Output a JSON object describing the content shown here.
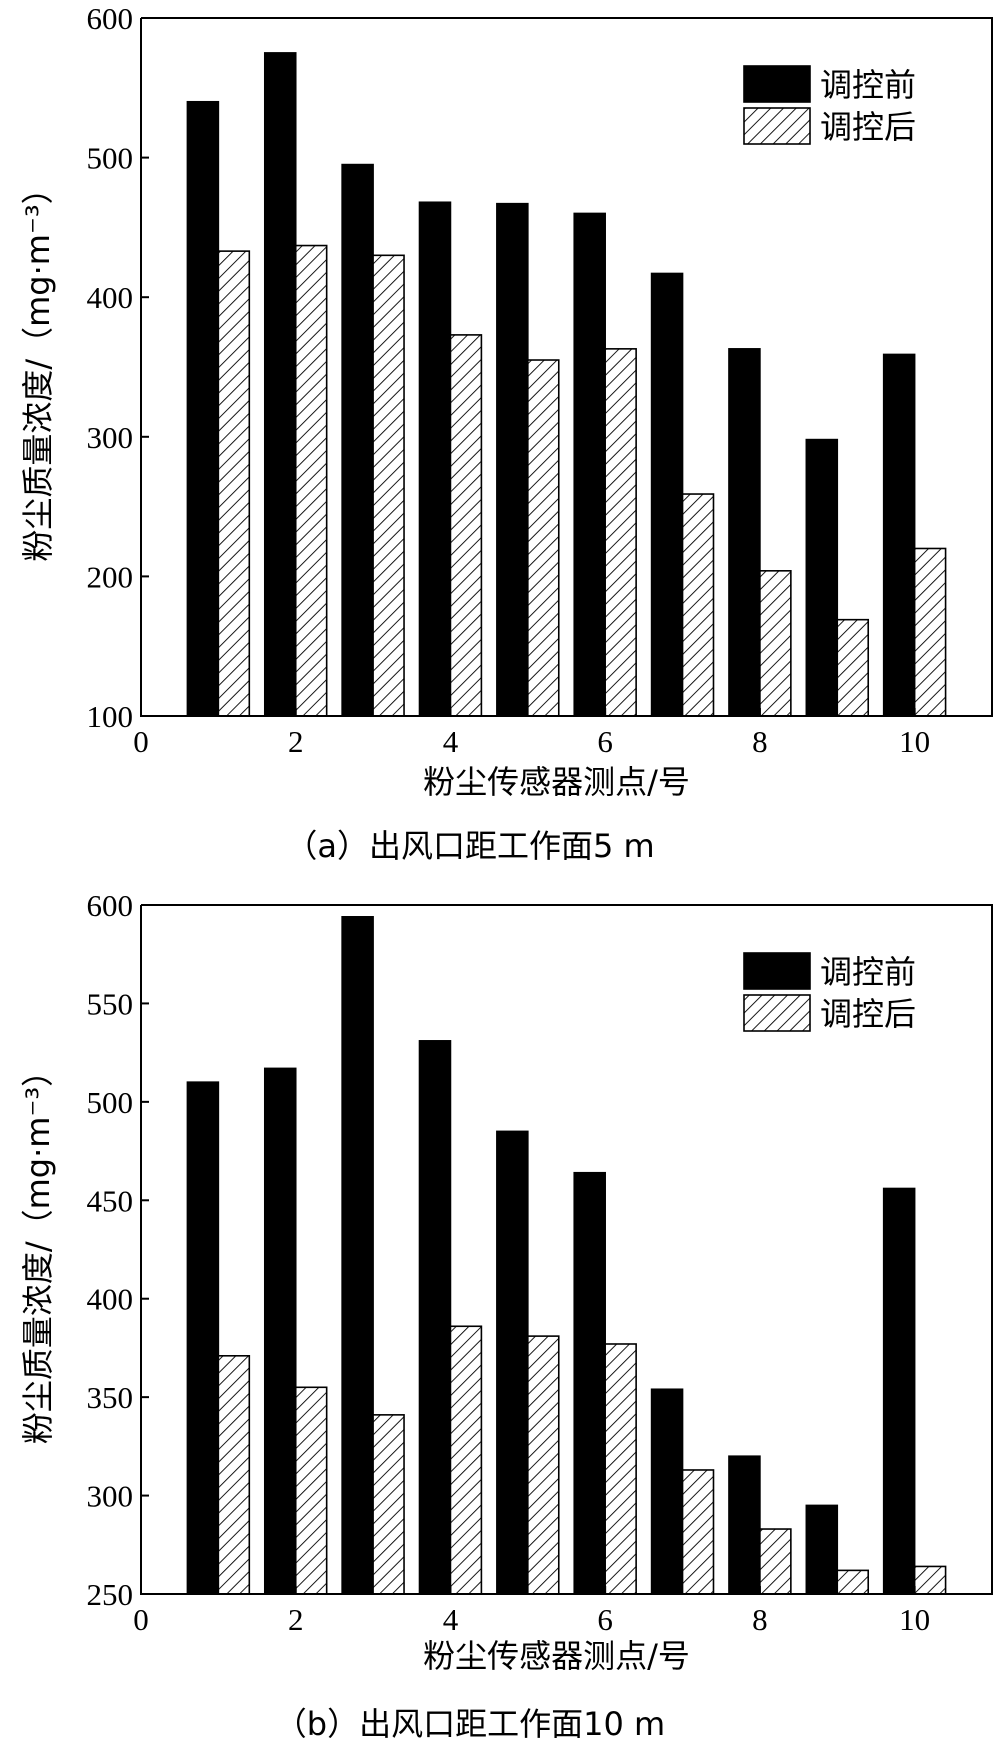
{
  "chart_data": [
    {
      "type": "bar",
      "panel": "a",
      "caption": "（a）出风口距工作面5 m",
      "xlabel": "粉尘传感器测点/号",
      "ylabel": "粉尘质量浓度/（mg·m⁻³）",
      "ylim": [
        100,
        600
      ],
      "yticks": [
        100,
        200,
        300,
        400,
        500,
        600
      ],
      "xlim": [
        0,
        11
      ],
      "xticks": [
        0,
        2,
        4,
        6,
        8,
        10
      ],
      "categories": [
        1,
        2,
        3,
        4,
        5,
        6,
        7,
        8,
        9,
        10
      ],
      "legend_position": "top-right",
      "series": [
        {
          "name": "调控前",
          "fill": "#000000",
          "values": [
            540,
            575,
            495,
            468,
            467,
            460,
            417,
            363,
            298,
            359
          ]
        },
        {
          "name": "调控后",
          "fill": "hatch",
          "values": [
            433,
            437,
            430,
            373,
            355,
            363,
            259,
            204,
            169,
            220
          ]
        }
      ]
    },
    {
      "type": "bar",
      "panel": "b",
      "caption": "（b）出风口距工作面10 m",
      "xlabel": "粉尘传感器测点/号",
      "ylabel": "粉尘质量浓度/（mg·m⁻³）",
      "ylim": [
        250,
        600
      ],
      "yticks": [
        250,
        300,
        350,
        400,
        450,
        500,
        550,
        600
      ],
      "xlim": [
        0,
        11
      ],
      "xticks": [
        0,
        2,
        4,
        6,
        8,
        10
      ],
      "categories": [
        1,
        2,
        3,
        4,
        5,
        6,
        7,
        8,
        9,
        10
      ],
      "legend_position": "top-right",
      "series": [
        {
          "name": "调控前",
          "fill": "#000000",
          "values": [
            510,
            517,
            594,
            531,
            485,
            464,
            354,
            320,
            295,
            456
          ]
        },
        {
          "name": "调控后",
          "fill": "hatch",
          "values": [
            371,
            355,
            341,
            386,
            381,
            377,
            313,
            283,
            262,
            264
          ]
        }
      ]
    }
  ]
}
